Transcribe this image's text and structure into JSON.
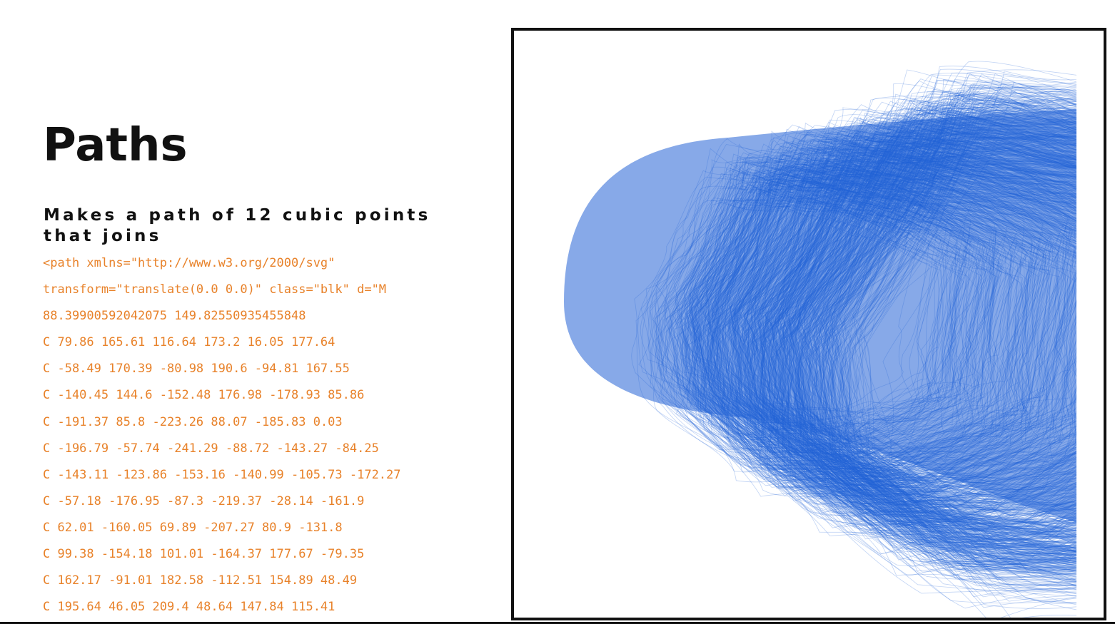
{
  "slide": {
    "title": "Paths",
    "subtitle": "Makes a path of 12 cubic points that joins",
    "code_lines": [
      "<path xmlns=\"http://www.w3.org/2000/svg\"",
      "transform=\"translate(0.0 0.0)\" class=\"blk\" d=\"M",
      "88.39900592042075 149.82550935455848",
      "C 79.86 165.61 116.64 173.2 16.05 177.64",
      "C -58.49 170.39 -80.98 190.6 -94.81 167.55",
      "C -140.45 144.6 -152.48 176.98 -178.93 85.86",
      "C -191.37 85.8 -223.26 88.07 -185.83 0.03",
      "C -196.79 -57.74 -241.29 -88.72 -143.27 -84.25",
      "C -143.11 -123.86 -153.16 -140.99 -105.73 -172.27",
      "C -57.18 -176.95 -87.3 -219.37 -28.14 -161.9",
      "C 62.01 -160.05 69.89 -207.27 80.9 -131.8",
      "C 99.38 -154.18 101.01 -164.37 177.67 -79.35",
      "C 162.17 -91.01 182.58 -112.51 154.89 48.49",
      "C 195.64 46.05 209.4 48.64 147.84 115.41"
    ]
  },
  "colors": {
    "title": "#111111",
    "code": "#e8822a",
    "path_stroke": "#2563d6",
    "frame_border": "#111111"
  }
}
